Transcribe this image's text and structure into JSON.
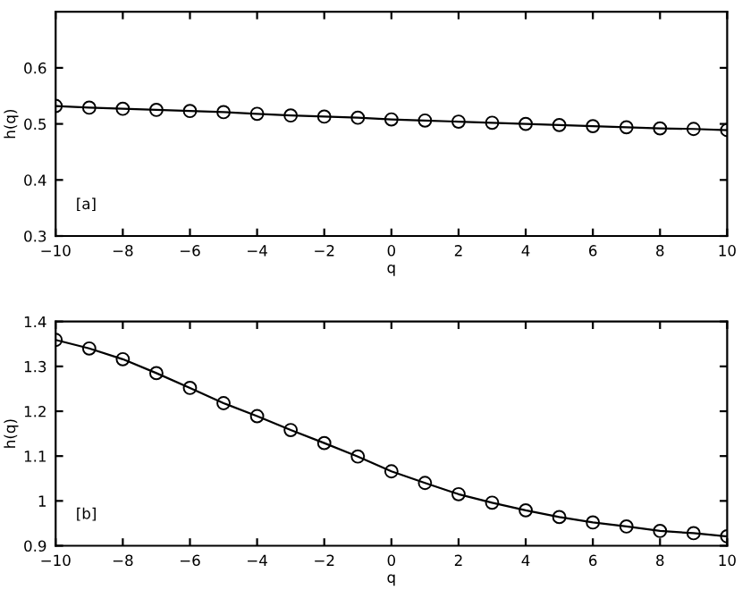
{
  "chart_data": [
    {
      "type": "line",
      "xlabel": "q",
      "ylabel": "h(q)",
      "annotations": [
        "[a]"
      ],
      "x": [
        -10,
        -9,
        -8,
        -7,
        -6,
        -5,
        -4,
        -3,
        -2,
        -1,
        0,
        1,
        2,
        3,
        4,
        5,
        6,
        7,
        8,
        9,
        10
      ],
      "series": [
        {
          "color": "#000000",
          "values": [
            0.532,
            0.529,
            0.527,
            0.525,
            0.523,
            0.521,
            0.518,
            0.515,
            0.513,
            0.511,
            0.508,
            0.506,
            0.504,
            0.502,
            0.5,
            0.498,
            0.496,
            0.494,
            0.492,
            0.491,
            0.489
          ]
        }
      ],
      "xlim": [
        -10,
        10
      ],
      "xticks": [
        {
          "value": -10,
          "label": "−10"
        },
        {
          "value": -8,
          "label": "−8"
        },
        {
          "value": -6,
          "label": "−6"
        },
        {
          "value": -4,
          "label": "−4"
        },
        {
          "value": -2,
          "label": "−2"
        },
        0,
        2,
        4,
        6,
        8,
        10
      ],
      "ylim": [
        0.3,
        0.7
      ],
      "yticks": [
        0.3,
        0.4,
        0.5,
        0.6
      ],
      "marker": "circle",
      "grid": false,
      "legend": false
    },
    {
      "type": "line",
      "xlabel": "q",
      "ylabel": "h(q)",
      "annotations": [
        "[b]"
      ],
      "x": [
        -10,
        -9,
        -8,
        -7,
        -6,
        -5,
        -4,
        -3,
        -2,
        -1,
        0,
        1,
        2,
        3,
        4,
        5,
        6,
        7,
        8,
        9,
        10
      ],
      "series": [
        {
          "color": "#000000",
          "values": [
            1.359,
            1.34,
            1.316,
            1.285,
            1.252,
            1.218,
            1.189,
            1.158,
            1.129,
            1.099,
            1.066,
            1.04,
            1.015,
            0.996,
            0.979,
            0.964,
            0.952,
            0.943,
            0.933,
            0.928,
            0.921
          ]
        }
      ],
      "xlim": [
        -10,
        10
      ],
      "xticks": [
        {
          "value": -10,
          "label": "−10"
        },
        {
          "value": -8,
          "label": "−8"
        },
        {
          "value": -6,
          "label": "−6"
        },
        {
          "value": -4,
          "label": "−4"
        },
        {
          "value": -2,
          "label": "−2"
        },
        0,
        2,
        4,
        6,
        8,
        10
      ],
      "ylim": [
        0.9,
        1.4
      ],
      "yticks": [
        0.9,
        1,
        1.1,
        1.2,
        1.3,
        1.4
      ],
      "marker": "circle",
      "grid": false,
      "legend": false
    }
  ]
}
